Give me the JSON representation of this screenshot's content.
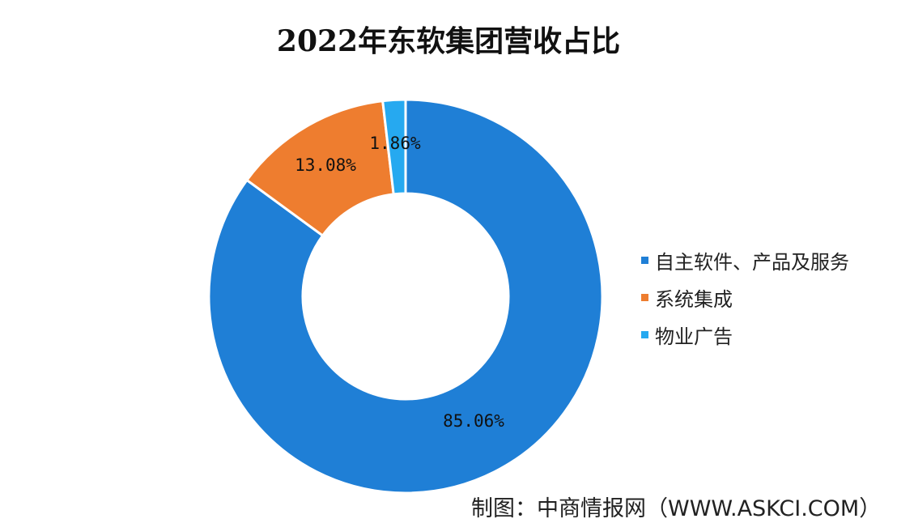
{
  "chart_data": {
    "type": "pie",
    "donut": true,
    "title": "2022年东软集团营收占比",
    "series": [
      {
        "name": "自主软件、产品及服务",
        "value": 85.06,
        "label": "85.06%",
        "color": "#1f7fd6"
      },
      {
        "name": "系统集成",
        "value": 13.08,
        "label": "13.08%",
        "color": "#ee7d2f"
      },
      {
        "name": "物业广告",
        "value": 1.86,
        "label": "1.86%",
        "color": "#26a9f0"
      }
    ],
    "legend_position": "right"
  },
  "source": "制图：中商情报网（WWW.ASKCI.COM）"
}
